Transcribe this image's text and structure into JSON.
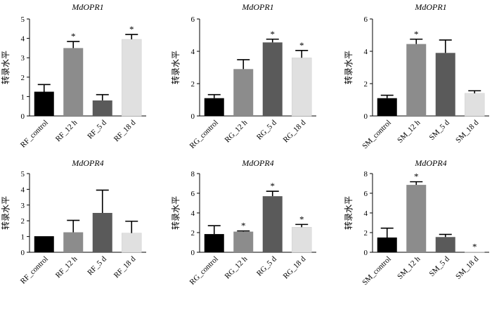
{
  "figure": {
    "y_axis_label": "转录水平",
    "colors": {
      "control": "#000000",
      "12h": "#8c8c8c",
      "5d": "#5a5a5a",
      "18d": "#e0e0e0",
      "axis": "#000000"
    }
  },
  "chart_data": [
    {
      "type": "bar",
      "title": "MdOPR1",
      "ylabel": "转录水平",
      "ylim": [
        0,
        5
      ],
      "yticks": [
        0,
        1,
        2,
        3,
        4,
        5
      ],
      "categories": [
        "RF_control",
        "RF_12 h",
        "RF_5 d",
        "RF_18 d"
      ],
      "values": [
        1.25,
        3.5,
        0.8,
        3.95
      ],
      "errors": [
        0.37,
        0.34,
        0.3,
        0.25
      ],
      "significance": [
        "",
        "*",
        "",
        "*"
      ]
    },
    {
      "type": "bar",
      "title": "MdOPR1",
      "ylabel": "转录水平",
      "ylim": [
        0,
        6
      ],
      "yticks": [
        0,
        2,
        4,
        6
      ],
      "categories": [
        "RG_control",
        "RG_12 h",
        "RG_5 d",
        "RG_18 d"
      ],
      "values": [
        1.1,
        2.9,
        4.55,
        3.6
      ],
      "errors": [
        0.22,
        0.58,
        0.2,
        0.45
      ],
      "significance": [
        "",
        "",
        "*",
        "*"
      ]
    },
    {
      "type": "bar",
      "title": "MdOPR1",
      "ylabel": "转录水平",
      "ylim": [
        0,
        6
      ],
      "yticks": [
        0,
        2,
        4,
        6
      ],
      "categories": [
        "SM_control",
        "SM_12 h",
        "SM_5 d",
        "SM_18 d"
      ],
      "values": [
        1.1,
        4.45,
        3.9,
        1.4
      ],
      "errors": [
        0.18,
        0.3,
        0.8,
        0.16
      ],
      "significance": [
        "",
        "*",
        "",
        ""
      ]
    },
    {
      "type": "bar",
      "title": "MdOPR4",
      "ylabel": "转录水平",
      "ylim": [
        0,
        5
      ],
      "yticks": [
        0,
        1,
        2,
        3,
        4,
        5
      ],
      "categories": [
        "RF_control",
        "RF_12 h",
        "RF_5 d",
        "RF_18 d"
      ],
      "values": [
        1.02,
        1.27,
        2.5,
        1.22
      ],
      "errors": [
        0.0,
        0.76,
        1.45,
        0.75
      ],
      "significance": [
        "",
        "",
        "",
        ""
      ]
    },
    {
      "type": "bar",
      "title": "MdOPR4",
      "ylabel": "转录水平",
      "ylim": [
        0,
        8
      ],
      "yticks": [
        0,
        2,
        4,
        6,
        8
      ],
      "categories": [
        "RG_control",
        "RG_12 h",
        "RG_5 d",
        "RG_18 d"
      ],
      "values": [
        1.85,
        2.1,
        5.7,
        2.55
      ],
      "errors": [
        0.85,
        0.07,
        0.5,
        0.28
      ],
      "significance": [
        "",
        "*",
        "*",
        "*"
      ]
    },
    {
      "type": "bar",
      "title": "MdOPR4",
      "ylabel": "转录水平",
      "ylim": [
        0,
        8
      ],
      "yticks": [
        0,
        2,
        4,
        6,
        8
      ],
      "categories": [
        "SM_control",
        "SM_12 h",
        "SM_5 d",
        "SM_18 d"
      ],
      "values": [
        1.5,
        6.85,
        1.55,
        0.05
      ],
      "errors": [
        0.95,
        0.32,
        0.27,
        0.0
      ],
      "significance": [
        "",
        "*",
        "",
        "*"
      ]
    }
  ]
}
